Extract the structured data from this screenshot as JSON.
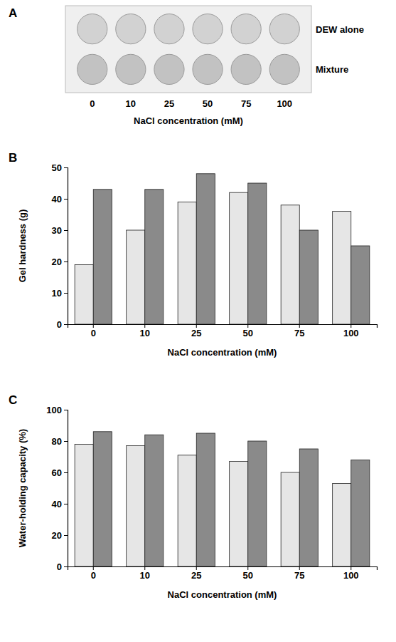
{
  "chart_data": [
    {
      "type": "image",
      "panel_label": "A",
      "rows": [
        "DEW alone",
        "Mixture"
      ],
      "categories": [
        "0",
        "10",
        "25",
        "50",
        "75",
        "100"
      ],
      "x_label": "NaCl concentration (mM)"
    },
    {
      "type": "bar",
      "panel_label": "B",
      "categories": [
        "0",
        "10",
        "25",
        "50",
        "75",
        "100"
      ],
      "x_label": "NaCl concentration (mM)",
      "y_label": "Gel hardness (g)",
      "series": [
        {
          "color": "#e6e6e6",
          "values": [
            19,
            30,
            39,
            42,
            38,
            36
          ]
        },
        {
          "color": "#8a8a8a",
          "values": [
            43,
            43,
            48,
            45,
            30,
            25
          ]
        }
      ],
      "ylim": [
        0,
        50
      ],
      "yticks": [
        0,
        10,
        20,
        30,
        40,
        50
      ],
      "grid": false
    },
    {
      "type": "bar",
      "panel_label": "C",
      "categories": [
        "0",
        "10",
        "25",
        "50",
        "75",
        "100"
      ],
      "x_label": "NaCl concentration (mM)",
      "y_label": "Water-holding capacity (%)",
      "series": [
        {
          "color": "#e6e6e6",
          "values": [
            78,
            77,
            71,
            67,
            60,
            53
          ]
        },
        {
          "color": "#8a8a8a",
          "values": [
            86,
            84,
            85,
            80,
            75,
            68
          ]
        }
      ],
      "ylim": [
        0,
        100
      ],
      "yticks": [
        0,
        20,
        40,
        60,
        80,
        100
      ],
      "grid": false
    }
  ]
}
